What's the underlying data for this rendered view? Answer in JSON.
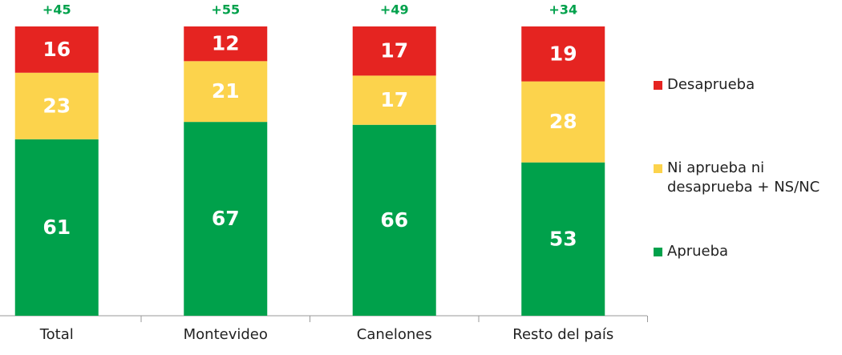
{
  "chart_data": {
    "type": "stacked_bar",
    "categories": [
      "Total",
      "Montevideo",
      "Canelones",
      "Resto del país"
    ],
    "series": [
      {
        "name": "Aprueba",
        "color": "#00a14b",
        "values": [
          61,
          67,
          66,
          53
        ]
      },
      {
        "name": "Ni aprueba ni desaprueba + NS/NC",
        "color": "#fcd34c",
        "values": [
          23,
          21,
          17,
          28
        ]
      },
      {
        "name": "Desaprueba",
        "color": "#e52421",
        "values": [
          16,
          12,
          17,
          19
        ]
      }
    ],
    "net": {
      "values": [
        45,
        55,
        49,
        34
      ],
      "value_labels": [
        "+45",
        "+55",
        "+49",
        "+34"
      ]
    },
    "ylim": [
      0,
      100
    ]
  }
}
